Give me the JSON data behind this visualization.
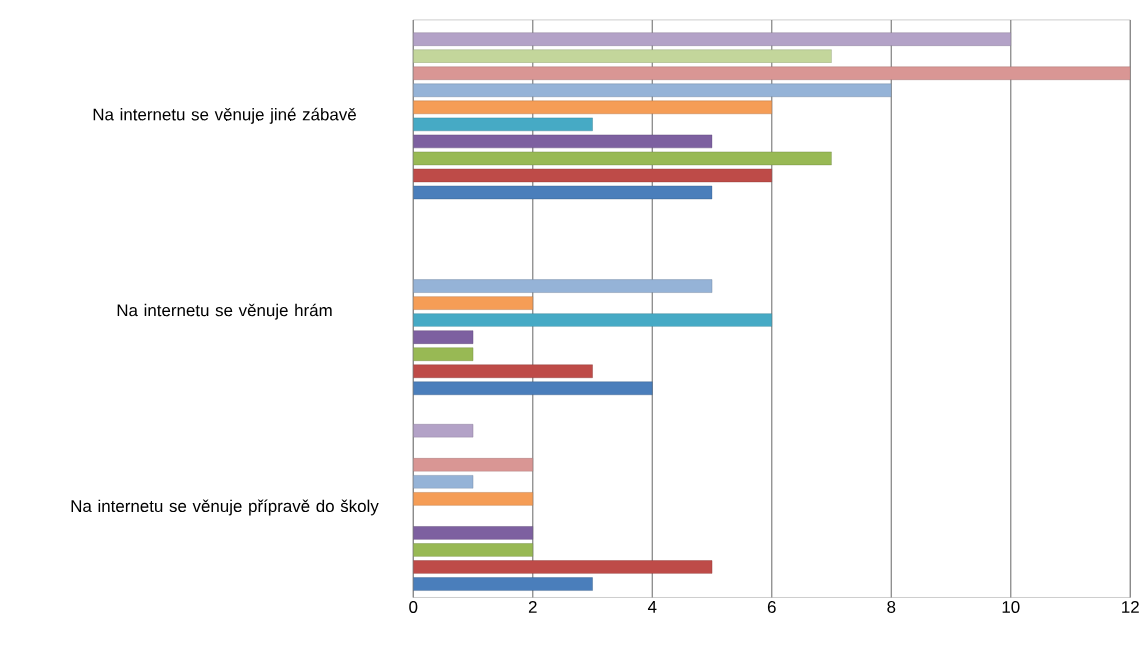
{
  "chart_data": {
    "type": "bar",
    "orientation": "horizontal",
    "categories": [
      "Na internetu se věnuje jiné zábavě",
      "Na internetu se věnuje hrám",
      "Na internetu se věnuje přípravě do školy"
    ],
    "series": [
      {
        "color": "#4a7ebb",
        "values": [
          5,
          4,
          3
        ]
      },
      {
        "color": "#be4b48",
        "values": [
          6,
          3,
          5
        ]
      },
      {
        "color": "#98b954",
        "values": [
          7,
          1,
          2
        ]
      },
      {
        "color": "#7d60a0",
        "values": [
          5,
          1,
          2
        ]
      },
      {
        "color": "#46aac5",
        "values": [
          3,
          6,
          null
        ]
      },
      {
        "color": "#f59d56",
        "values": [
          6,
          2,
          2
        ]
      },
      {
        "color": "#95b3d7",
        "values": [
          8,
          5,
          1
        ]
      },
      {
        "color": "#d99694",
        "values": [
          12,
          null,
          2
        ]
      },
      {
        "color": "#c3d69b",
        "values": [
          7,
          null,
          null
        ]
      },
      {
        "color": "#b3a2c7",
        "values": [
          10,
          null,
          1
        ]
      }
    ],
    "xlim": [
      0,
      12
    ],
    "xticks": [
      0,
      2,
      4,
      6,
      8,
      10,
      12
    ],
    "grid": "x"
  }
}
